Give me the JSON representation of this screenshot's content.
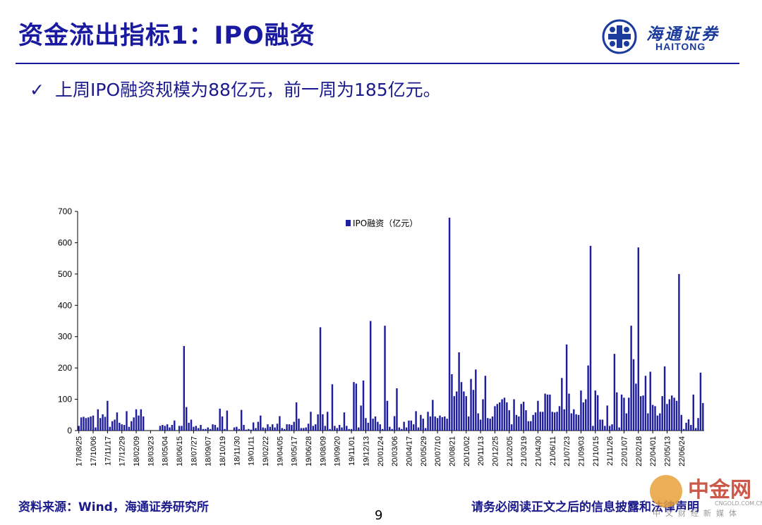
{
  "header": {
    "title": "资金流出指标1：IPO融资"
  },
  "logo": {
    "cn": "海通证券",
    "en": "HAITONG"
  },
  "bullet": {
    "check": "✓",
    "text": "上周IPO融资规模为88亿元，前一周为185亿元。"
  },
  "footer": {
    "source": "资料来源：Wind，海通证券研究所",
    "page": "9",
    "disclaimer": "请务必阅读正文之后的信息披露和法律声明"
  },
  "watermark": {
    "text": "中金网",
    "sub": "中文财经新媒体",
    "url": "CNGOLD.COM.CN"
  },
  "colors": {
    "accent": "#1a1aa0",
    "bar": "#1f1f9e"
  },
  "chart_data": {
    "type": "bar",
    "title": "",
    "xlabel": "",
    "ylabel": "",
    "ylim": [
      0,
      700
    ],
    "yticks": [
      0,
      100,
      200,
      300,
      400,
      500,
      600,
      700
    ],
    "legend": "IPO融资（亿元）",
    "legend_position": "top-center",
    "xtick_labels": [
      "17/08/25",
      "17/10/06",
      "17/11/17",
      "17/12/29",
      "18/02/09",
      "18/03/23",
      "18/05/04",
      "18/06/15",
      "18/07/27",
      "18/09/07",
      "18/10/19",
      "18/11/30",
      "19/01/11",
      "19/02/22",
      "19/04/05",
      "19/05/17",
      "19/06/28",
      "19/08/09",
      "19/09/20",
      "19/11/01",
      "19/12/13",
      "20/01/24",
      "20/03/06",
      "20/04/17",
      "20/05/29",
      "20/07/10",
      "20/08/21",
      "20/10/02",
      "20/11/13",
      "20/12/25",
      "21/02/05",
      "21/03/19",
      "21/04/30",
      "21/06/11",
      "21/07/23",
      "21/09/03",
      "21/10/15",
      "21/11/26",
      "22/01/07",
      "22/02/18",
      "22/04/01",
      "22/05/13",
      "22/06/24"
    ],
    "series": [
      {
        "name": "IPO融资（亿元）",
        "values": [
          15,
          42,
          44,
          40,
          42,
          45,
          48,
          10,
          68,
          40,
          52,
          44,
          95,
          12,
          30,
          35,
          58,
          25,
          20,
          18,
          62,
          12,
          30,
          42,
          68,
          48,
          68,
          45,
          0,
          0,
          0,
          0,
          0,
          0,
          15,
          18,
          15,
          20,
          10,
          18,
          32,
          0,
          15,
          15,
          270,
          75,
          25,
          35,
          12,
          15,
          8,
          18,
          5,
          5,
          10,
          5,
          20,
          18,
          10,
          70,
          45,
          5,
          64,
          0,
          0,
          10,
          12,
          5,
          66,
          18,
          3,
          5,
          3,
          26,
          8,
          28,
          48,
          10,
          8,
          20,
          12,
          20,
          10,
          22,
          46,
          8,
          5,
          20,
          20,
          18,
          28,
          90,
          38,
          8,
          8,
          10,
          22,
          60,
          15,
          20,
          52,
          330,
          52,
          15,
          60,
          5,
          148,
          15,
          8,
          18,
          10,
          58,
          15,
          5,
          5,
          155,
          150,
          10,
          80,
          160,
          40,
          25,
          350,
          38,
          45,
          28,
          20,
          5,
          335,
          95,
          12,
          5,
          46,
          135,
          10,
          5,
          28,
          10,
          32,
          32,
          20,
          62,
          10,
          50,
          38,
          8,
          60,
          45,
          98,
          45,
          40,
          48,
          43,
          45,
          38,
          680,
          180,
          110,
          125,
          250,
          155,
          125,
          110,
          45,
          165,
          130,
          195,
          55,
          35,
          100,
          175,
          40,
          38,
          45,
          78,
          85,
          90,
          100,
          105,
          90,
          65,
          20,
          100,
          50,
          45,
          85,
          92,
          65,
          30,
          30,
          50,
          58,
          95,
          60,
          60,
          118,
          115,
          115,
          60,
          58,
          60,
          78,
          168,
          68,
          275,
          118,
          55,
          68,
          52,
          50,
          128,
          90,
          100,
          208,
          590,
          15,
          128,
          113,
          35,
          35,
          15,
          80,
          15,
          20,
          245,
          122,
          10,
          115,
          105,
          55,
          105,
          335,
          228,
          150,
          585,
          110,
          112,
          175,
          55,
          188,
          82,
          78,
          48,
          55,
          110,
          205,
          85,
          100,
          112,
          105,
          95,
          500,
          50,
          5,
          25,
          36,
          18,
          115,
          8,
          40,
          185,
          88
        ]
      }
    ]
  }
}
